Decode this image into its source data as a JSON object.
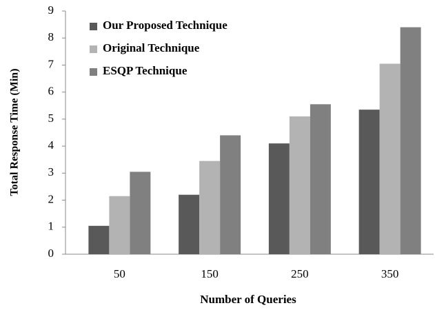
{
  "chart_data": {
    "type": "bar",
    "x_label": "Number of Queries",
    "y_label": "Total Response Time (Min)",
    "categories": [
      "50",
      "150",
      "250",
      "350"
    ],
    "series": [
      {
        "name": "Our Proposed Technique",
        "color": "#595959",
        "values": [
          1.05,
          2.2,
          4.1,
          5.35
        ]
      },
      {
        "name": "Original  Technique",
        "color": "#b3b3b3",
        "values": [
          2.15,
          3.45,
          5.1,
          7.05
        ]
      },
      {
        "name": "ESQP Technique",
        "color": "#808080",
        "values": [
          3.05,
          4.4,
          5.55,
          8.4
        ]
      }
    ],
    "ylim": [
      0,
      9
    ],
    "yticks": [
      0,
      1,
      2,
      3,
      4,
      5,
      6,
      7,
      8,
      9
    ],
    "grid": false,
    "legend": "top-left"
  }
}
